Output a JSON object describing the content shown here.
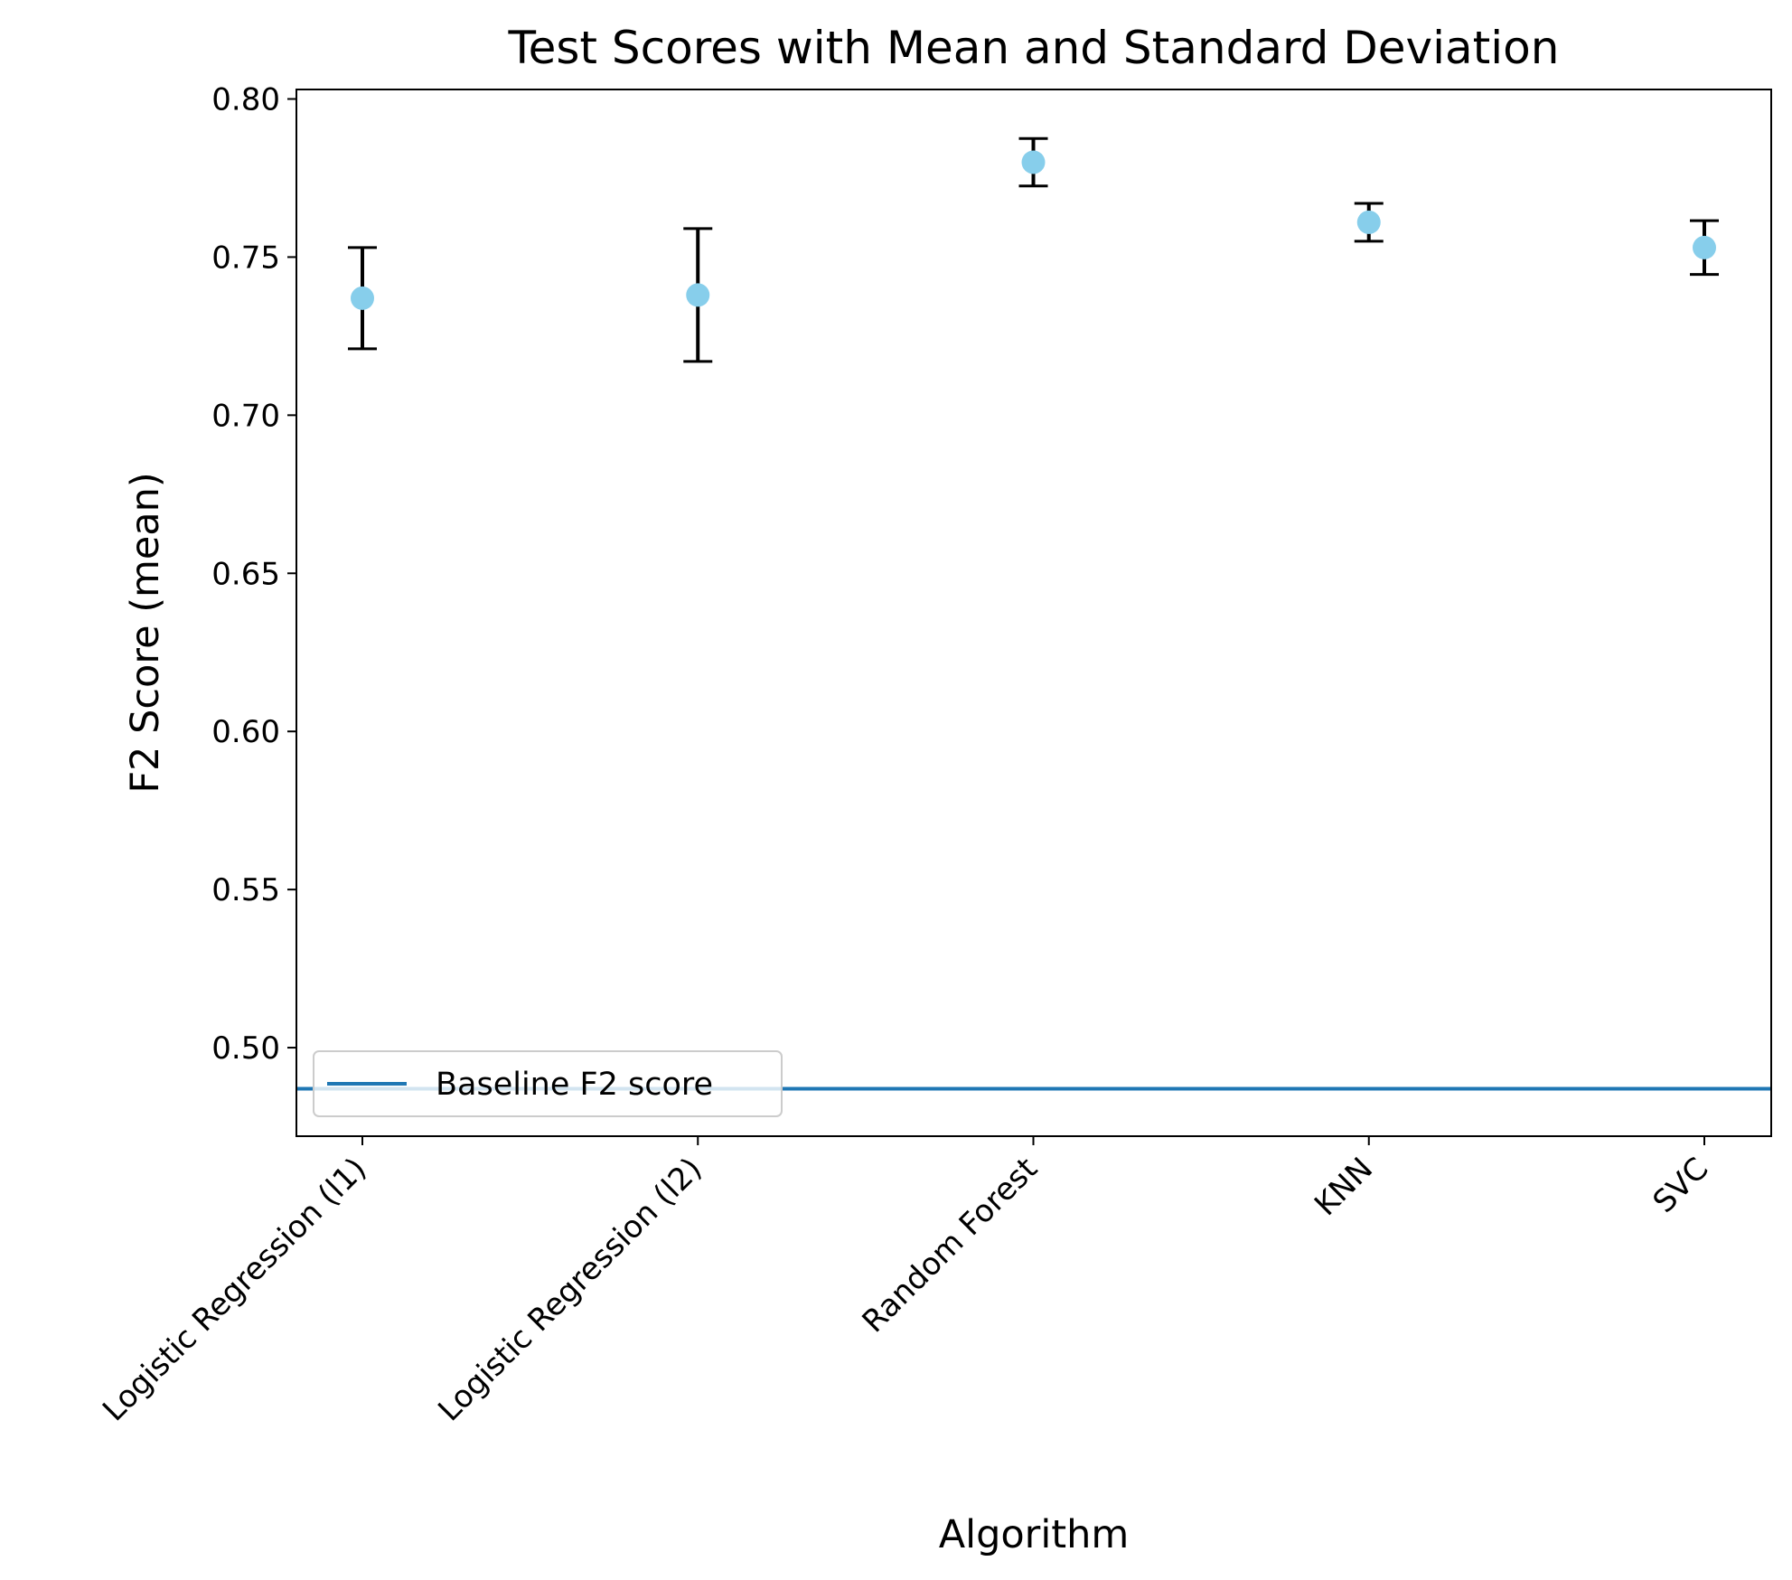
{
  "chart_data": {
    "type": "scatter",
    "title": "Test Scores with Mean and Standard Deviation",
    "xlabel": "Algorithm",
    "ylabel": "F2 Score (mean)",
    "categories": [
      "Logistic Regression (l1)",
      "Logistic Regression (l2)",
      "Random Forest",
      "KNN",
      "SVC"
    ],
    "series": [
      {
        "values": [
          0.737,
          0.738,
          0.78,
          0.761,
          0.753
        ],
        "std": [
          0.016,
          0.021,
          0.0075,
          0.006,
          0.0085
        ],
        "color": "#87ceeb"
      }
    ],
    "baseline": {
      "name": "Baseline F2 score",
      "value": 0.487,
      "color": "#1f77b4"
    },
    "ylim": [
      0.472,
      0.803
    ],
    "yticks": [
      "0.50",
      "0.55",
      "0.60",
      "0.65",
      "0.70",
      "0.75",
      "0.80"
    ],
    "grid": false,
    "legend_position": "lower-left",
    "errorbar_color": "#000000"
  }
}
